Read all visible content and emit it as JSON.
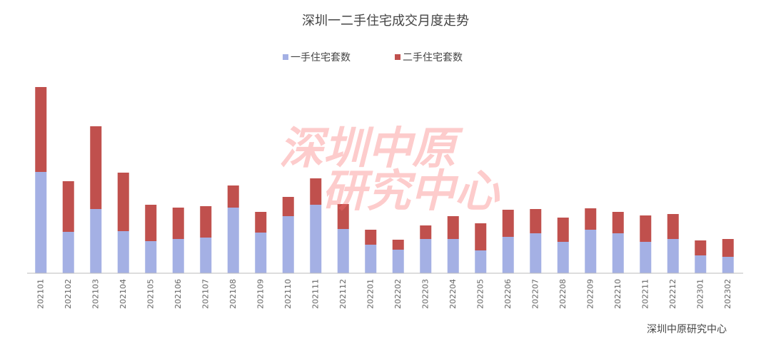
{
  "chart_data": {
    "type": "stacked_bar",
    "title": "深圳一二手住宅成交月度走势",
    "categories": [
      "202101",
      "202102",
      "202103",
      "202104",
      "202105",
      "202106",
      "202107",
      "202108",
      "202109",
      "202110",
      "202111",
      "202112",
      "202201",
      "202202",
      "202203",
      "202204",
      "202205",
      "202206",
      "202207",
      "202208",
      "202209",
      "202210",
      "202211",
      "202212",
      "202301",
      "202302"
    ],
    "series": [
      {
        "name": "一手住宅套数",
        "color": "#a4b0e4",
        "values": [
          142,
          58,
          90,
          59,
          45,
          48,
          50,
          92,
          57,
          80,
          96,
          62,
          40,
          33,
          48,
          48,
          32,
          51,
          56,
          44,
          61,
          56,
          44,
          48,
          25,
          23
        ]
      },
      {
        "name": "二手住宅套数",
        "color": "#c0504d",
        "values": [
          119,
          71,
          116,
          82,
          51,
          44,
          44,
          31,
          29,
          27,
          37,
          35,
          21,
          14,
          19,
          32,
          38,
          38,
          34,
          34,
          30,
          30,
          37,
          35,
          21,
          25
        ]
      }
    ],
    "ylim": [
      0,
      270
    ],
    "watermark": [
      "深圳中原",
      "研究中心"
    ],
    "source": "深圳中原研究中心"
  }
}
